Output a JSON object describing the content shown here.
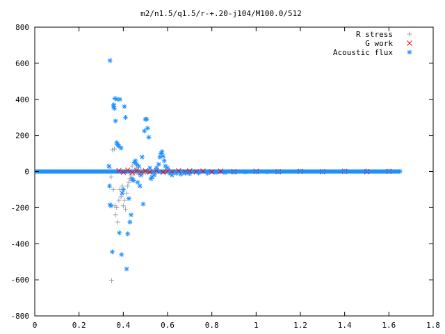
{
  "chart_data": {
    "type": "scatter",
    "title": "m2/n1.5/q1.5/r-+.20-j104/M100.0/512",
    "xlabel": "",
    "ylabel": "",
    "xlim": [
      0,
      1.8
    ],
    "ylim": [
      -800,
      800
    ],
    "x_ticks": [
      0,
      0.2,
      0.4,
      0.6,
      0.8,
      1,
      1.2,
      1.4,
      1.6,
      1.8
    ],
    "x_tick_labels": [
      "0",
      "0.2",
      "0.4",
      "0.6",
      "0.8",
      "1",
      "1.2",
      "1.4",
      "1.6",
      "1.8"
    ],
    "y_ticks": [
      -800,
      -600,
      -400,
      -200,
      0,
      200,
      400,
      600,
      800
    ],
    "y_tick_labels": [
      "-800",
      "-600",
      "-400",
      "-200",
      "0",
      "200",
      "400",
      "600",
      "800"
    ],
    "grid": false,
    "legend_position": "top-right",
    "series": [
      {
        "name": "R stress",
        "marker": "plus",
        "color": "#a0a0a0",
        "points": [
          [
            0.34,
            20
          ],
          [
            0.345,
            -30
          ],
          [
            0.35,
            120
          ],
          [
            0.355,
            -100
          ],
          [
            0.36,
            125
          ],
          [
            0.362,
            -190
          ],
          [
            0.365,
            -240
          ],
          [
            0.37,
            -200
          ],
          [
            0.375,
            -280
          ],
          [
            0.38,
            -160
          ],
          [
            0.385,
            -100
          ],
          [
            0.39,
            -140
          ],
          [
            0.395,
            -80
          ],
          [
            0.4,
            -190
          ],
          [
            0.405,
            -160
          ],
          [
            0.41,
            -210
          ],
          [
            0.415,
            -120
          ],
          [
            0.42,
            -80
          ],
          [
            0.425,
            -60
          ],
          [
            0.43,
            -40
          ],
          [
            0.435,
            -20
          ],
          [
            0.44,
            30
          ],
          [
            0.45,
            -10
          ],
          [
            0.46,
            20
          ],
          [
            0.47,
            -15
          ],
          [
            0.48,
            10
          ],
          [
            0.5,
            -8
          ],
          [
            0.52,
            5
          ],
          [
            0.55,
            -5
          ],
          [
            0.6,
            3
          ],
          [
            0.347,
            -605
          ]
        ]
      },
      {
        "name": "G work",
        "marker": "cross",
        "color": "#ff0000",
        "points": [
          [
            0.38,
            5
          ],
          [
            0.4,
            -4
          ],
          [
            0.42,
            8
          ],
          [
            0.44,
            -6
          ],
          [
            0.46,
            6
          ],
          [
            0.48,
            -5
          ],
          [
            0.5,
            4
          ],
          [
            0.52,
            -3
          ],
          [
            0.55,
            5
          ],
          [
            0.58,
            -4
          ],
          [
            0.6,
            3
          ],
          [
            0.62,
            -3
          ],
          [
            0.65,
            4
          ],
          [
            0.68,
            -2
          ],
          [
            0.7,
            3
          ],
          [
            0.73,
            -2
          ],
          [
            0.76,
            2
          ],
          [
            0.8,
            -2
          ],
          [
            0.84,
            2
          ],
          [
            0.9,
            -1
          ],
          [
            1.0,
            1
          ],
          [
            1.1,
            -1
          ],
          [
            1.2,
            1
          ],
          [
            1.3,
            -1
          ],
          [
            1.4,
            1
          ],
          [
            1.5,
            -1
          ],
          [
            1.6,
            1
          ]
        ]
      },
      {
        "name": "Acoustic flux",
        "marker": "star",
        "color": "#1e90ff",
        "points": [
          [
            0.34,
            615
          ],
          [
            0.335,
            30
          ],
          [
            0.338,
            -80
          ],
          [
            0.34,
            -185
          ],
          [
            0.345,
            -190
          ],
          [
            0.35,
            -445
          ],
          [
            0.355,
            360
          ],
          [
            0.357,
            370
          ],
          [
            0.36,
            350
          ],
          [
            0.362,
            405
          ],
          [
            0.365,
            280
          ],
          [
            0.37,
            160
          ],
          [
            0.372,
            400
          ],
          [
            0.375,
            150
          ],
          [
            0.38,
            140
          ],
          [
            0.382,
            -340
          ],
          [
            0.385,
            400
          ],
          [
            0.39,
            130
          ],
          [
            0.392,
            -460
          ],
          [
            0.395,
            -120
          ],
          [
            0.4,
            -100
          ],
          [
            0.405,
            360
          ],
          [
            0.41,
            300
          ],
          [
            0.415,
            -540
          ],
          [
            0.42,
            -345
          ],
          [
            0.425,
            -150
          ],
          [
            0.43,
            -280
          ],
          [
            0.435,
            -240
          ],
          [
            0.44,
            -40
          ],
          [
            0.445,
            -50
          ],
          [
            0.45,
            50
          ],
          [
            0.455,
            60
          ],
          [
            0.46,
            40
          ],
          [
            0.465,
            -60
          ],
          [
            0.47,
            30
          ],
          [
            0.475,
            -80
          ],
          [
            0.48,
            -20
          ],
          [
            0.485,
            80
          ],
          [
            0.49,
            -180
          ],
          [
            0.495,
            225
          ],
          [
            0.5,
            290
          ],
          [
            0.505,
            290
          ],
          [
            0.51,
            240
          ],
          [
            0.515,
            190
          ],
          [
            0.52,
            20
          ],
          [
            0.525,
            -40
          ],
          [
            0.53,
            -30
          ],
          [
            0.54,
            -20
          ],
          [
            0.55,
            20
          ],
          [
            0.56,
            40
          ],
          [
            0.565,
            80
          ],
          [
            0.57,
            100
          ],
          [
            0.575,
            110
          ],
          [
            0.58,
            85
          ],
          [
            0.585,
            60
          ],
          [
            0.59,
            30
          ],
          [
            0.6,
            20
          ],
          [
            0.61,
            -10
          ],
          [
            0.62,
            -20
          ],
          [
            0.64,
            -10
          ],
          [
            0.66,
            -15
          ],
          [
            0.68,
            -10
          ],
          [
            0.7,
            -12
          ],
          [
            0.74,
            -8
          ],
          [
            0.78,
            -10
          ],
          [
            0.82,
            -5
          ],
          [
            0.86,
            -6
          ],
          [
            0.9,
            -4
          ],
          [
            0.95,
            -3
          ],
          [
            1.0,
            -2
          ],
          [
            1.05,
            -2
          ],
          [
            1.1,
            -1
          ],
          [
            1.2,
            2
          ],
          [
            1.3,
            -1
          ],
          [
            1.4,
            1
          ],
          [
            1.5,
            3
          ],
          [
            1.6,
            2
          ],
          [
            1.65,
            1
          ]
        ]
      }
    ]
  }
}
